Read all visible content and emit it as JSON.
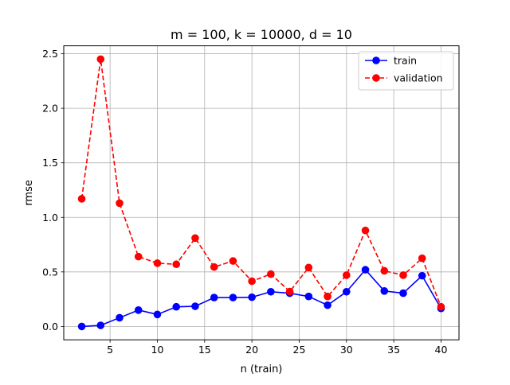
{
  "chart_data": {
    "type": "line",
    "title": "m = 100, k = 10000, d = 10",
    "xlabel": "n (train)",
    "ylabel": "rmse",
    "xlim": [
      0.1,
      41.9
    ],
    "ylim": [
      -0.1225,
      2.5725
    ],
    "xticks": [
      5,
      10,
      15,
      20,
      25,
      30,
      35,
      40
    ],
    "yticks": [
      0.0,
      0.5,
      1.0,
      1.5,
      2.0,
      2.5
    ],
    "xtick_labels": [
      "5",
      "10",
      "15",
      "20",
      "25",
      "30",
      "35",
      "40"
    ],
    "ytick_labels": [
      "0.0",
      "0.5",
      "1.0",
      "1.5",
      "2.0",
      "2.5"
    ],
    "grid": true,
    "legend_position": "upper right",
    "x": [
      2,
      4,
      6,
      8,
      10,
      12,
      14,
      16,
      18,
      20,
      22,
      24,
      26,
      28,
      30,
      32,
      34,
      36,
      38,
      40
    ],
    "series": [
      {
        "name": "train",
        "color": "#0000ff",
        "linestyle": "solid",
        "marker": "circle",
        "values": [
          0.0,
          0.01,
          0.08,
          0.15,
          0.11,
          0.18,
          0.185,
          0.265,
          0.265,
          0.268,
          0.318,
          0.305,
          0.275,
          0.195,
          0.318,
          0.52,
          0.325,
          0.305,
          0.465,
          0.165
        ]
      },
      {
        "name": "validation",
        "color": "#ff0000",
        "linestyle": "dashed",
        "marker": "circle",
        "values": [
          1.17,
          2.45,
          1.13,
          0.64,
          0.58,
          0.57,
          0.81,
          0.545,
          0.6,
          0.415,
          0.48,
          0.32,
          0.54,
          0.275,
          0.47,
          0.88,
          0.51,
          0.47,
          0.625,
          0.18
        ]
      }
    ]
  }
}
